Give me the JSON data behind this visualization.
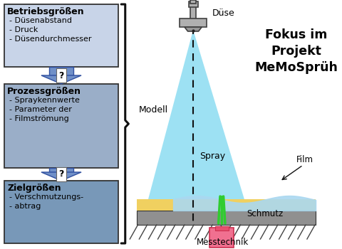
{
  "bg_color": "#ffffff",
  "box1_color": "#c8d4e8",
  "box2_color": "#9aaec8",
  "box3_color": "#7898b8",
  "box1_title": "Betriebsgrößen",
  "box1_items": [
    "Düsenabstand",
    "Druck",
    "Düsendurchmesser"
  ],
  "box2_title": "Prozessgrößen",
  "box2_items": [
    "Spraykennwerte",
    "Parameter der",
    "Filmströmung"
  ],
  "box3_title": "Zielgrößen",
  "box3_items": [
    "Verschmutzungs-",
    "abtrag"
  ],
  "label_modell": "Modell",
  "label_spray": "Spray",
  "label_duese": "Düse",
  "label_film": "Film",
  "label_schmutz": "Schmutz",
  "label_messtechnik": "Messtechnik",
  "title": "Fokus im\nProjekt\nMeMoSprüh",
  "spray_color": "#7dd8f0",
  "spray_dot_color": "#3aa0cc",
  "film_color": "#aad8f0",
  "dirt_color": "#f0d060",
  "ground_hatch_color": "#888888",
  "nozzle_gray": "#b0b0b0",
  "nozzle_dark": "#404040",
  "sensor_color": "#f07090",
  "sensor_dark": "#cc3050",
  "plant_color": "#30cc30"
}
